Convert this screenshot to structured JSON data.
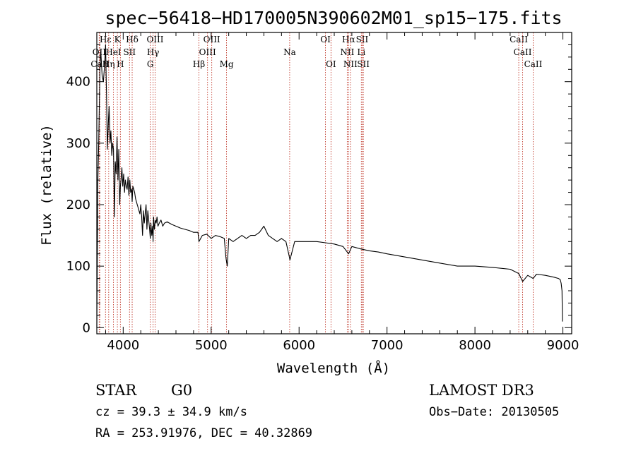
{
  "chart_data": {
    "type": "line",
    "title": "spec−56418−HD170005N390602M01_sp15−175.fits",
    "xlabel": "Wavelength (Å)",
    "ylabel": "Flux (relative)",
    "xlim": [
      3700,
      9100
    ],
    "ylim": [
      -10,
      480
    ],
    "xticks": [
      4000,
      5000,
      6000,
      7000,
      8000,
      9000
    ],
    "xtick_labels": [
      "4000",
      "5000",
      "6000",
      "7000",
      "8000",
      "9000"
    ],
    "yticks": [
      0,
      100,
      200,
      300,
      400
    ],
    "ytick_labels": [
      "0",
      "100",
      "200",
      "300",
      "400"
    ],
    "series": [
      {
        "name": "flux",
        "x": [
          3700,
          3712,
          3722,
          3735,
          3745,
          3760,
          3775,
          3790,
          3800,
          3810,
          3820,
          3830,
          3840,
          3850,
          3860,
          3870,
          3880,
          3890,
          3900,
          3910,
          3920,
          3930,
          3940,
          3950,
          3960,
          3968,
          3975,
          3985,
          3995,
          4005,
          4015,
          4025,
          4035,
          4045,
          4055,
          4065,
          4075,
          4085,
          4095,
          4102,
          4110,
          4120,
          4130,
          4140,
          4150,
          4160,
          4170,
          4180,
          4190,
          4200,
          4210,
          4220,
          4230,
          4240,
          4250,
          4260,
          4270,
          4280,
          4290,
          4300,
          4308,
          4315,
          4325,
          4335,
          4340,
          4345,
          4355,
          4365,
          4375,
          4385,
          4395,
          4410,
          4430,
          4450,
          4470,
          4500,
          4550,
          4600,
          4650,
          4700,
          4750,
          4800,
          4850,
          4861,
          4900,
          4950,
          5000,
          5050,
          5100,
          5150,
          5167,
          5172,
          5183,
          5200,
          5250,
          5300,
          5350,
          5400,
          5450,
          5500,
          5550,
          5600,
          5650,
          5700,
          5750,
          5800,
          5850,
          5890,
          5896,
          5950,
          6000,
          6100,
          6200,
          6300,
          6400,
          6500,
          6563,
          6600,
          6700,
          6800,
          6900,
          7000,
          7200,
          7400,
          7600,
          7800,
          8000,
          8200,
          8400,
          8498,
          8542,
          8600,
          8662,
          8700,
          8800,
          8900,
          8950,
          8970,
          8980,
          8990,
          8995
        ],
        "values": [
          0,
          240,
          300,
          420,
          450,
          410,
          400,
          430,
          460,
          380,
          290,
          330,
          360,
          300,
          320,
          280,
          300,
          290,
          180,
          270,
          250,
          310,
          240,
          290,
          200,
          230,
          240,
          260,
          230,
          250,
          220,
          240,
          230,
          225,
          245,
          215,
          240,
          220,
          225,
          205,
          230,
          225,
          220,
          210,
          205,
          200,
          195,
          190,
          185,
          200,
          180,
          150,
          190,
          170,
          185,
          200,
          160,
          190,
          175,
          160,
          145,
          170,
          150,
          165,
          140,
          180,
          160,
          175,
          170,
          180,
          165,
          170,
          175,
          165,
          170,
          172,
          168,
          165,
          162,
          160,
          158,
          155,
          155,
          140,
          150,
          152,
          145,
          150,
          148,
          145,
          115,
          110,
          100,
          145,
          140,
          145,
          150,
          145,
          150,
          150,
          155,
          165,
          150,
          145,
          140,
          145,
          140,
          115,
          110,
          140,
          140,
          140,
          140,
          138,
          136,
          132,
          120,
          132,
          128,
          125,
          123,
          120,
          115,
          110,
          105,
          100,
          100,
          98,
          95,
          88,
          75,
          85,
          80,
          87,
          85,
          82,
          80,
          78,
          72,
          60,
          10
        ]
      }
    ],
    "spectral_lines": [
      {
        "label": "Hε",
        "x": 3799,
        "row": 0
      },
      {
        "label": "OII",
        "x": 3727,
        "row": 1
      },
      {
        "label": "CaII",
        "x": 3734,
        "row": 2
      },
      {
        "label": "K",
        "x": 3934,
        "row": 0
      },
      {
        "label": "HeI",
        "x": 3889,
        "row": 1
      },
      {
        "label": "Hη",
        "x": 3835,
        "row": 2
      },
      {
        "label": "Hδ",
        "x": 4102,
        "row": 0
      },
      {
        "label": "SII",
        "x": 4072,
        "row": 1
      },
      {
        "label": "H",
        "x": 3968,
        "row": 2
      },
      {
        "label": "OIII",
        "x": 4363,
        "row": 0
      },
      {
        "label": "Hγ",
        "x": 4340,
        "row": 1
      },
      {
        "label": "G",
        "x": 4308,
        "row": 2
      },
      {
        "label": "OIII",
        "x": 5007,
        "row": 0
      },
      {
        "label": "OIII",
        "x": 4959,
        "row": 1
      },
      {
        "label": "Hβ",
        "x": 4861,
        "row": 2
      },
      {
        "label": "Mg",
        "x": 5175,
        "row": 2
      },
      {
        "label": "Na",
        "x": 5893,
        "row": 1
      },
      {
        "label": "OI",
        "x": 6300,
        "row": 0
      },
      {
        "label": "OI",
        "x": 6363,
        "row": 2
      },
      {
        "label": "Hα",
        "x": 6563,
        "row": 0
      },
      {
        "label": "NII",
        "x": 6548,
        "row": 1
      },
      {
        "label": "NII",
        "x": 6584,
        "row": 2
      },
      {
        "label": "SII",
        "x": 6717,
        "row": 0
      },
      {
        "label": "Li",
        "x": 6708,
        "row": 1
      },
      {
        "label": "SII",
        "x": 6731,
        "row": 2
      },
      {
        "label": "CaII",
        "x": 8498,
        "row": 0
      },
      {
        "label": "CaII",
        "x": 8542,
        "row": 1
      },
      {
        "label": "CaII",
        "x": 8662,
        "row": 2
      }
    ]
  },
  "info": {
    "object_type": "STAR",
    "subclass": "G0",
    "survey": "LAMOST DR3",
    "velocity_line": "cz = 39.3 ± 34.9 km/s",
    "obs_date_line": "Obs−Date: 20130505",
    "coords_line": "RA = 253.91976, DEC =  40.32869"
  }
}
